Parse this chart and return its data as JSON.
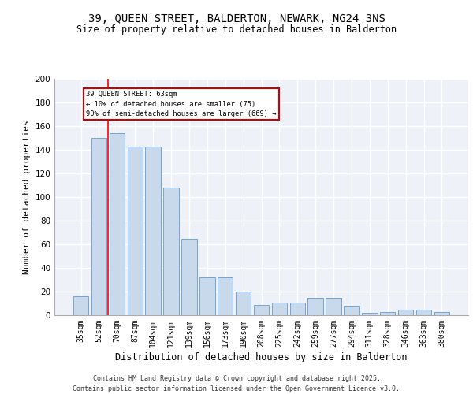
{
  "title": "39, QUEEN STREET, BALDERTON, NEWARK, NG24 3NS",
  "subtitle": "Size of property relative to detached houses in Balderton",
  "xlabel": "Distribution of detached houses by size in Balderton",
  "ylabel": "Number of detached properties",
  "bar_values": [
    16,
    150,
    154,
    143,
    143,
    108,
    65,
    32,
    32,
    20,
    9,
    11,
    11,
    15,
    15,
    8,
    2,
    3,
    5,
    5,
    3
  ],
  "categories": [
    "35sqm",
    "52sqm",
    "70sqm",
    "87sqm",
    "104sqm",
    "121sqm",
    "139sqm",
    "156sqm",
    "173sqm",
    "190sqm",
    "208sqm",
    "225sqm",
    "242sqm",
    "259sqm",
    "277sqm",
    "294sqm",
    "311sqm",
    "328sqm",
    "346sqm",
    "363sqm",
    "380sqm"
  ],
  "bar_color": "#c9d9ec",
  "bar_edge_color": "#6699cc",
  "red_line_x": 1.5,
  "annotation_text": "39 QUEEN STREET: 63sqm\n← 10% of detached houses are smaller (75)\n90% of semi-detached houses are larger (669) →",
  "annotation_box_color": "#ffffff",
  "annotation_box_edge_color": "#cc0000",
  "background_color": "#eef2f8",
  "grid_color": "#ffffff",
  "ylim": [
    0,
    200
  ],
  "yticks": [
    0,
    20,
    40,
    60,
    80,
    100,
    120,
    140,
    160,
    180,
    200
  ],
  "footer": "Contains HM Land Registry data © Crown copyright and database right 2025.\nContains public sector information licensed under the Open Government Licence v3.0.",
  "title_fontsize": 10,
  "axis_fontsize": 7.5,
  "footer_fontsize": 6.0
}
